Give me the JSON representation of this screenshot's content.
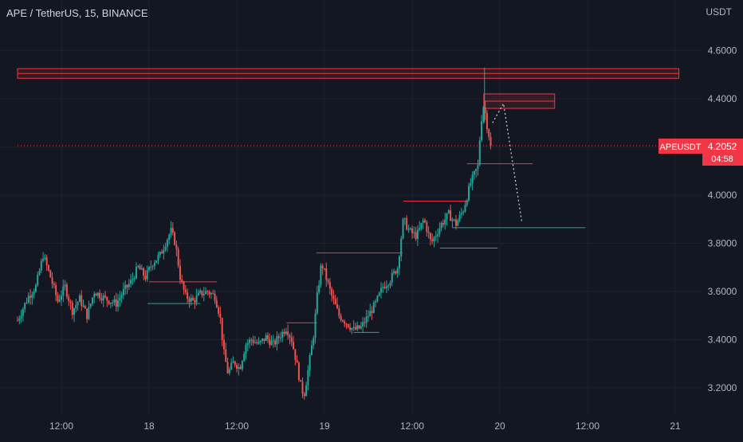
{
  "header": {
    "symbol_title": "APE / TetherUS, 15, BINANCE",
    "currency": "USDT"
  },
  "price_tag": {
    "symbol": "APEUSDT",
    "price": "4.2052",
    "countdown": "04:58"
  },
  "colors": {
    "background": "#131722",
    "up": "#26a69a",
    "down": "#ef5350",
    "grid": "#1e222d",
    "axis_text": "#b2b5be",
    "resistance": "#f23645",
    "support": "#26a69a",
    "projection": "#d1d4dc",
    "price_tag": "#f23645"
  },
  "chart_data": {
    "type": "candlestick",
    "title": "APE / TetherUS, 15, BINANCE",
    "y_axis_unit": "USDT",
    "y_ticks": [
      "4.6000",
      "4.4000",
      "4.2000",
      "4.0000",
      "3.8000",
      "3.6000",
      "3.4000",
      "3.2000"
    ],
    "x_ticks": [
      "12:00",
      "18",
      "12:00",
      "19",
      "12:00",
      "20",
      "12:00",
      "21"
    ],
    "ylim": [
      3.1,
      4.74
    ],
    "time_range_hours": [
      6,
      102
    ],
    "grid": true,
    "last_price": 4.2052,
    "price_path": [
      {
        "t": 6.0,
        "p": 3.48
      },
      {
        "t": 7.5,
        "p": 3.58
      },
      {
        "t": 8.5,
        "p": 3.62
      },
      {
        "t": 9.5,
        "p": 3.75
      },
      {
        "t": 10.5,
        "p": 3.66
      },
      {
        "t": 11.5,
        "p": 3.56
      },
      {
        "t": 12.5,
        "p": 3.62
      },
      {
        "t": 13.5,
        "p": 3.52
      },
      {
        "t": 14.5,
        "p": 3.57
      },
      {
        "t": 15.5,
        "p": 3.5
      },
      {
        "t": 16.5,
        "p": 3.6
      },
      {
        "t": 18.0,
        "p": 3.57
      },
      {
        "t": 19.5,
        "p": 3.55
      },
      {
        "t": 20.5,
        "p": 3.6
      },
      {
        "t": 21.5,
        "p": 3.64
      },
      {
        "t": 22.5,
        "p": 3.7
      },
      {
        "t": 23.5,
        "p": 3.66
      },
      {
        "t": 24.5,
        "p": 3.72
      },
      {
        "t": 25.5,
        "p": 3.75
      },
      {
        "t": 26.5,
        "p": 3.82
      },
      {
        "t": 27.0,
        "p": 3.85
      },
      {
        "t": 27.6,
        "p": 3.8
      },
      {
        "t": 28.3,
        "p": 3.65
      },
      {
        "t": 29.0,
        "p": 3.58
      },
      {
        "t": 30.0,
        "p": 3.56
      },
      {
        "t": 31.0,
        "p": 3.59
      },
      {
        "t": 32.0,
        "p": 3.6
      },
      {
        "t": 33.0,
        "p": 3.58
      },
      {
        "t": 33.7,
        "p": 3.5
      },
      {
        "t": 34.2,
        "p": 3.35
      },
      {
        "t": 34.8,
        "p": 3.26
      },
      {
        "t": 35.6,
        "p": 3.31
      },
      {
        "t": 36.4,
        "p": 3.28
      },
      {
        "t": 37.2,
        "p": 3.38
      },
      {
        "t": 38.0,
        "p": 3.4
      },
      {
        "t": 39.0,
        "p": 3.38
      },
      {
        "t": 40.0,
        "p": 3.41
      },
      {
        "t": 41.0,
        "p": 3.38
      },
      {
        "t": 42.0,
        "p": 3.42
      },
      {
        "t": 42.8,
        "p": 3.45
      },
      {
        "t": 43.5,
        "p": 3.4
      },
      {
        "t": 44.2,
        "p": 3.3
      },
      {
        "t": 44.8,
        "p": 3.2
      },
      {
        "t": 45.2,
        "p": 3.17
      },
      {
        "t": 45.8,
        "p": 3.28
      },
      {
        "t": 46.5,
        "p": 3.42
      },
      {
        "t": 47.0,
        "p": 3.58
      },
      {
        "t": 47.6,
        "p": 3.72
      },
      {
        "t": 48.3,
        "p": 3.65
      },
      {
        "t": 49.0,
        "p": 3.58
      },
      {
        "t": 50.0,
        "p": 3.5
      },
      {
        "t": 51.0,
        "p": 3.47
      },
      {
        "t": 52.0,
        "p": 3.44
      },
      {
        "t": 53.0,
        "p": 3.45
      },
      {
        "t": 54.0,
        "p": 3.5
      },
      {
        "t": 55.0,
        "p": 3.55
      },
      {
        "t": 56.0,
        "p": 3.62
      },
      {
        "t": 57.0,
        "p": 3.65
      },
      {
        "t": 58.0,
        "p": 3.7
      },
      {
        "t": 58.8,
        "p": 3.9
      },
      {
        "t": 59.6,
        "p": 3.85
      },
      {
        "t": 60.6,
        "p": 3.83
      },
      {
        "t": 61.6,
        "p": 3.9
      },
      {
        "t": 62.6,
        "p": 3.8
      },
      {
        "t": 63.3,
        "p": 3.84
      },
      {
        "t": 64.0,
        "p": 3.88
      },
      {
        "t": 65.0,
        "p": 3.92
      },
      {
        "t": 66.0,
        "p": 3.88
      },
      {
        "t": 67.0,
        "p": 3.94
      },
      {
        "t": 68.0,
        "p": 4.05
      },
      {
        "t": 69.0,
        "p": 4.12
      },
      {
        "t": 69.4,
        "p": 4.3
      },
      {
        "t": 69.8,
        "p": 4.38
      },
      {
        "t": 70.3,
        "p": 4.28
      },
      {
        "t": 70.8,
        "p": 4.2052
      }
    ],
    "overlays": [
      {
        "kind": "resistance_band",
        "price_from": 4.485,
        "price_to": 4.525,
        "t_from": 6,
        "t_to": 96.5
      },
      {
        "kind": "resistance_zone",
        "price_from": 4.36,
        "price_to": 4.42,
        "t_from": 69.8,
        "t_to": 79.5
      },
      {
        "kind": "last_price_line",
        "price": 4.2052,
        "t_from": 6,
        "t_to": 96.5
      },
      {
        "kind": "resistance_line",
        "price": 4.13,
        "t_from": 67.5,
        "t_to": 76.5
      },
      {
        "kind": "resistance_line",
        "price": 3.975,
        "t_from": 58.8,
        "t_to": 67.8
      },
      {
        "kind": "resistance_line",
        "price": 3.76,
        "t_from": 46.9,
        "t_to": 58.7
      },
      {
        "kind": "resistance_line",
        "price": 3.64,
        "t_from": 24.0,
        "t_to": 33.3
      },
      {
        "kind": "resistance_line",
        "price": 3.47,
        "t_from": 42.8,
        "t_to": 47.0
      },
      {
        "kind": "support_line",
        "price": 3.55,
        "t_from": 23.8,
        "t_to": 31.0
      },
      {
        "kind": "support_line",
        "price": 3.43,
        "t_from": 52.0,
        "t_to": 55.5
      },
      {
        "kind": "support_line",
        "price": 3.78,
        "t_from": 63.8,
        "t_to": 71.7
      },
      {
        "kind": "support_line",
        "price": 3.865,
        "t_from": 65.5,
        "t_to": 83.7
      },
      {
        "kind": "projection",
        "points": [
          {
            "t": 71.0,
            "p": 4.3
          },
          {
            "t": 72.5,
            "p": 4.38
          },
          {
            "t": 75.0,
            "p": 3.89
          }
        ]
      }
    ]
  }
}
